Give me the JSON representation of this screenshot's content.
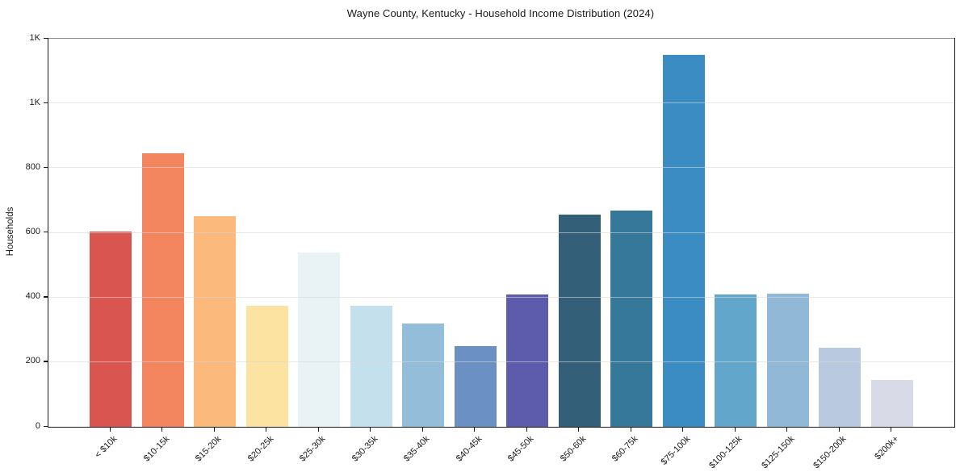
{
  "chart_data": {
    "type": "bar",
    "title": "Wayne County, Kentucky - Household Income Distribution (2024)",
    "xlabel": "",
    "ylabel": "Households",
    "ylim": [
      0,
      1200
    ],
    "grid": "horizontal",
    "legend": "none",
    "yticks": {
      "values": [
        0,
        200,
        400,
        600,
        800,
        1000,
        1200
      ],
      "labels": [
        "0",
        "200",
        "400",
        "600",
        "800",
        "1K",
        "1K"
      ]
    },
    "categories": [
      "< $10k",
      "$10-15k",
      "$15-20k",
      "$20-25k",
      "$25-30k",
      "$30-35k",
      "$35-40k",
      "$40-45k",
      "$45-50k",
      "$50-60k",
      "$60-75k",
      "$75-100k",
      "$100-125k",
      "$125-150k",
      "$150-200k",
      "$200k+"
    ],
    "values": [
      605,
      845,
      650,
      375,
      540,
      375,
      320,
      250,
      410,
      655,
      668,
      1150,
      410,
      412,
      245,
      145
    ],
    "bar_colors": [
      "#d8564f",
      "#f3865f",
      "#fbba7b",
      "#fde3a1",
      "#e9f2f4",
      "#c4e0ec",
      "#94bdda",
      "#6b90c3",
      "#5d5bab",
      "#345f78",
      "#36789a",
      "#3b8cc2",
      "#63a6cb",
      "#92b8d8",
      "#b9c9e0",
      "#d8dae7"
    ],
    "colors": {
      "background": "#ffffff",
      "grid": "#e7e7e7",
      "spine": "#1a1a1a",
      "text": "#1a1a1a"
    }
  }
}
